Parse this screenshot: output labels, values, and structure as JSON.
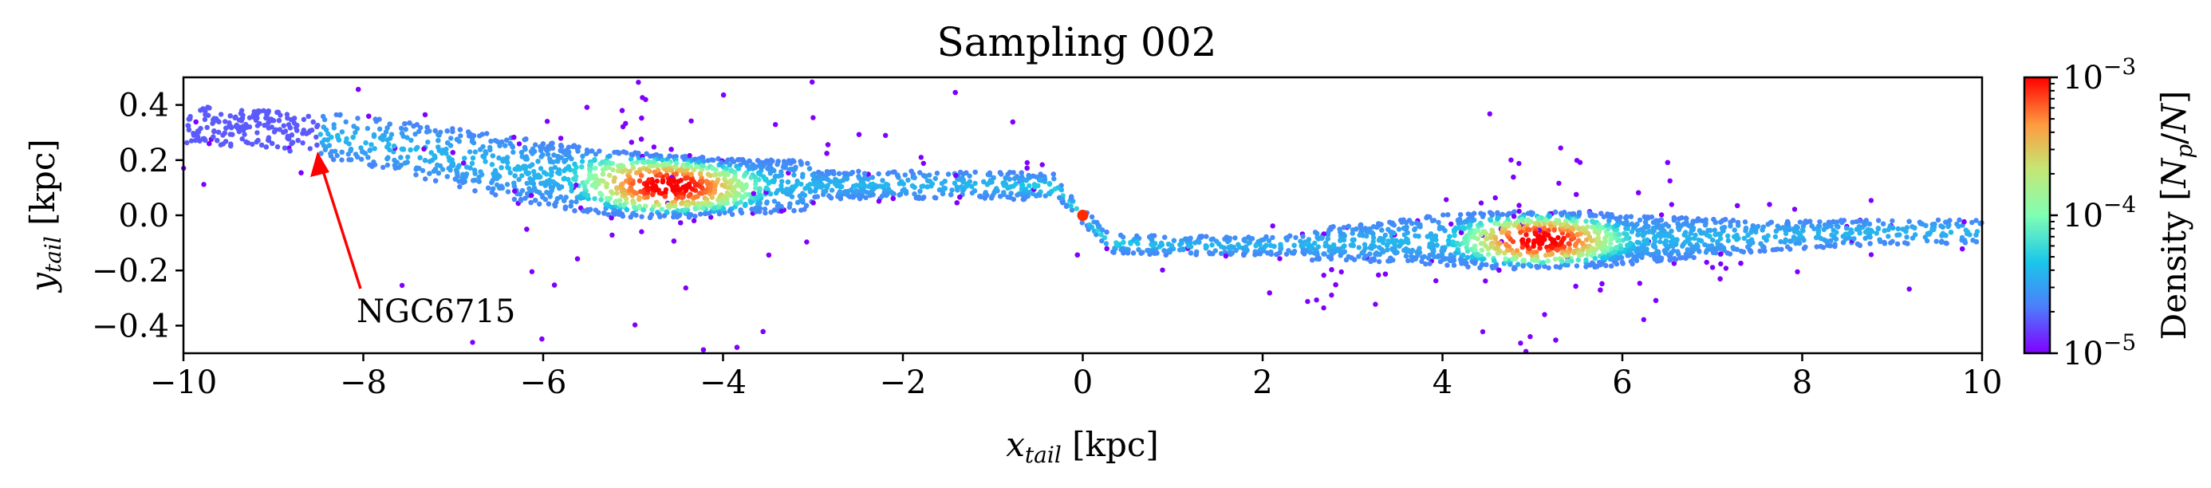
{
  "chart_data": {
    "type": "scatter",
    "title": "Sampling 002",
    "xlabel": "x_tail [kpc]",
    "ylabel": "y_tail [kpc]",
    "xlim": [
      -10,
      10
    ],
    "ylim": [
      -0.5,
      0.5
    ],
    "xticks": [
      -10,
      -8,
      -6,
      -4,
      -2,
      0,
      2,
      4,
      6,
      8,
      10
    ],
    "xtick_labels": [
      "−10",
      "−8",
      "−6",
      "−4",
      "−2",
      "0",
      "2",
      "4",
      "6",
      "8",
      "10"
    ],
    "yticks": [
      0.4,
      0.2,
      0.0,
      -0.2,
      -0.4
    ],
    "ytick_labels": [
      "0.4",
      "0.2",
      "0.0",
      "−0.2",
      "−0.4"
    ],
    "grid": false,
    "colormap": "rainbow",
    "colorbar": {
      "label": "Density [N_p/N]",
      "scale": "log",
      "range": [
        1e-05,
        0.001
      ],
      "tick_labels": [
        "10^−3",
        "10^−4",
        "10^−5"
      ]
    },
    "annotation": {
      "text": "NGC6715",
      "arrow_tip": [
        -8.5,
        0.25
      ],
      "text_position": [
        -8.0,
        -0.35
      ],
      "color": "#ff0000"
    },
    "series": [
      {
        "description_points": "density-colored point cloud along stream track",
        "track": [
          [
            -10.0,
            0.33
          ],
          [
            -9.0,
            0.31
          ],
          [
            -8.0,
            0.27
          ],
          [
            -7.0,
            0.21
          ],
          [
            -6.0,
            0.15
          ],
          [
            -5.0,
            0.11
          ],
          [
            -4.0,
            0.1
          ],
          [
            -3.0,
            0.11
          ],
          [
            -2.0,
            0.11
          ],
          [
            -1.0,
            0.11
          ],
          [
            -0.3,
            0.1
          ],
          [
            0.0,
            0.0
          ],
          [
            0.3,
            -0.1
          ],
          [
            1.0,
            -0.11
          ],
          [
            2.0,
            -0.11
          ],
          [
            3.0,
            -0.1
          ],
          [
            4.0,
            -0.09
          ],
          [
            5.0,
            -0.09
          ],
          [
            6.0,
            -0.09
          ],
          [
            7.0,
            -0.08
          ],
          [
            8.0,
            -0.07
          ],
          [
            9.0,
            -0.06
          ],
          [
            10.0,
            -0.06
          ]
        ],
        "density_peaks": [
          {
            "x": -4.6,
            "y": 0.1,
            "level": 0.001
          },
          {
            "x": 5.1,
            "y": -0.09,
            "level": 0.001
          },
          {
            "x": 0.0,
            "y": 0.0,
            "level": 0.001
          }
        ]
      }
    ]
  }
}
